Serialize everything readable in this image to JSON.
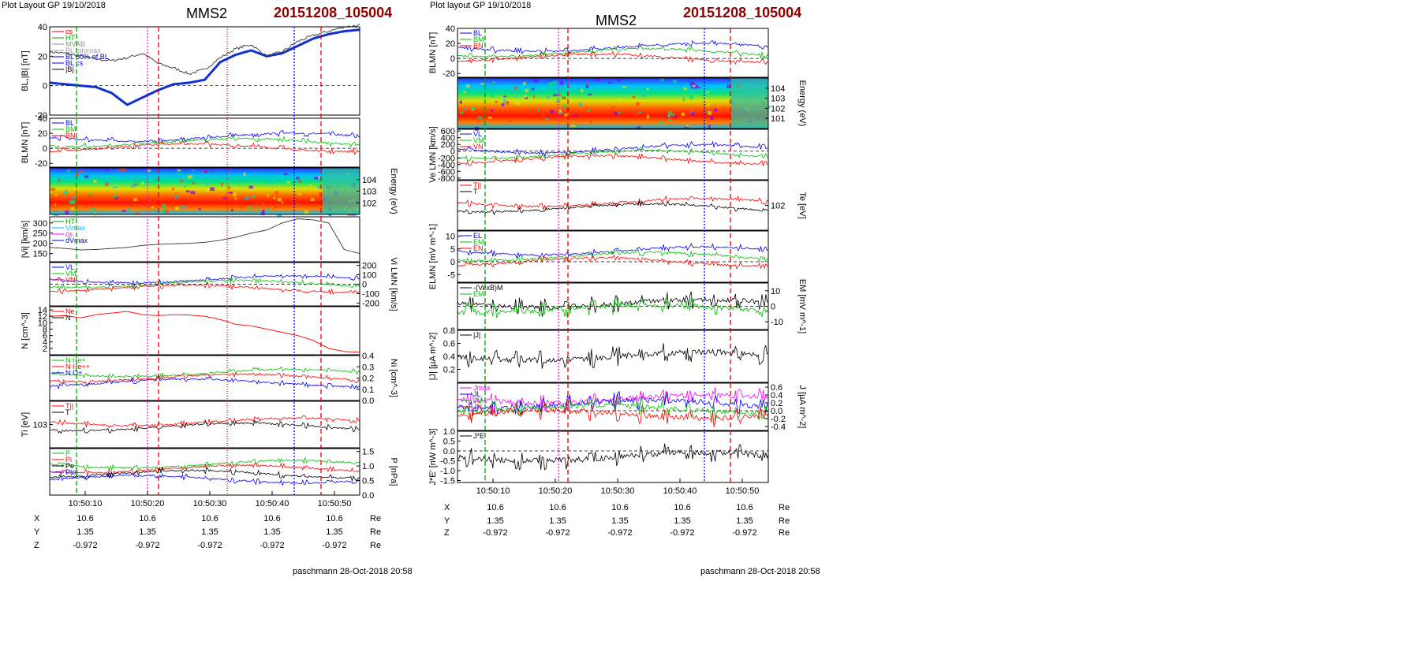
{
  "left": {
    "layout_title": "Plot Layout GP 19/10/2018",
    "spacecraft": "MMS2",
    "event": "20151208_105004",
    "footer": "paschmann 28-Oct-2018 20:58",
    "time_ticks": [
      "10:50:10",
      "10:50:20",
      "10:50:30",
      "10:50:40",
      "10:50:50"
    ],
    "ephemeris": {
      "rows": [
        {
          "label": "X",
          "values": [
            "10.6",
            "10.6",
            "10.6",
            "10.6",
            "10.6"
          ],
          "unit": "Re"
        },
        {
          "label": "Y",
          "values": [
            "1.35",
            "1.35",
            "1.35",
            "1.35",
            "1.35"
          ],
          "unit": "Re"
        },
        {
          "label": "Z",
          "values": [
            "-0.972",
            "-0.972",
            "-0.972",
            "-0.972",
            "-0.972"
          ],
          "unit": "Re"
        }
      ]
    }
  },
  "right": {
    "layout_title": "Plot layout GP 19/10/2018",
    "spacecraft": "MMS2",
    "event": "20151208_105004",
    "footer": "paschmann 28-Oct-2018 20:58",
    "time_ticks": [
      "10:50:10",
      "10:50:20",
      "10:50:30",
      "10:50:40",
      "10:50:50"
    ],
    "ephemeris": {
      "rows": [
        {
          "label": "X",
          "values": [
            "10.6",
            "10.6",
            "10.6",
            "10.6",
            "10.6"
          ],
          "unit": "Re"
        },
        {
          "label": "Y",
          "values": [
            "1.35",
            "1.35",
            "1.35",
            "1.35",
            "1.35"
          ],
          "unit": "Re"
        },
        {
          "label": "Z",
          "values": [
            "-0.972",
            "-0.972",
            "-0.972",
            "-0.972",
            "-0.972"
          ],
          "unit": "Re"
        }
      ]
    }
  },
  "chart_data": [
    {
      "type": "line",
      "ylabel": "BL,|B| [nT]",
      "ylim": [
        -20,
        40
      ],
      "yticks": [
        "40",
        "20",
        "0",
        "-20"
      ],
      "legend": [
        "cs",
        "HT",
        "MVAB",
        "BL minmax",
        "BL 50% of BL",
        "BL cs",
        "|B|"
      ],
      "colors": [
        "#e00000",
        "#00a000",
        "#909090",
        "#a0a0a0",
        "#0000c0",
        "#0000ff",
        "#000000"
      ],
      "series": [
        {
          "name": "BL",
          "values": [
            2,
            1,
            0,
            -1,
            -5,
            -13,
            -8,
            -3,
            1,
            2,
            4,
            16,
            21,
            24,
            20,
            22,
            27,
            32,
            35,
            37,
            38
          ]
        },
        {
          "name": "|B|",
          "values": [
            23,
            22,
            20,
            18,
            17,
            19,
            22,
            15,
            12,
            8,
            11,
            19,
            25,
            28,
            20,
            23,
            30,
            34,
            37,
            40,
            41
          ]
        }
      ]
    },
    {
      "type": "line",
      "ylabel": "BLMN [nT]",
      "ylim": [
        -25,
        40
      ],
      "yticks": [
        "40",
        "20",
        "0",
        "-20"
      ],
      "legend": [
        "BL",
        "BM",
        "BN"
      ],
      "colors": [
        "#0000ff",
        "#00c000",
        "#ff0000"
      ]
    },
    {
      "type": "heatmap",
      "ylabel": "Energy (eV)",
      "yticks": [
        "10^4",
        "10^3",
        "10^2"
      ]
    },
    {
      "type": "line",
      "ylabel": "|Vi| [km/s]",
      "ylim": [
        110,
        330
      ],
      "yticks": [
        "300",
        "250",
        "200",
        "150"
      ],
      "legend": [
        "HT",
        "Vimax",
        "cs",
        "dVmax"
      ],
      "colors": [
        "#00a000",
        "#00c0ff",
        "#ff00ff",
        "#0000c0"
      ],
      "series": [
        {
          "name": "|Vi|",
          "values": [
            180,
            175,
            168,
            170,
            175,
            180,
            190,
            195,
            198,
            200,
            205,
            215,
            230,
            250,
            265,
            300,
            320,
            315,
            300,
            170,
            150
          ]
        }
      ]
    },
    {
      "type": "line",
      "ylabel": "Vi LMN [km/s]",
      "ylim": [
        -230,
        230
      ],
      "yticks": [
        "200",
        "100",
        "0",
        "-100",
        "-200"
      ],
      "legend": [
        "VL",
        "VM",
        "VN"
      ],
      "colors": [
        "#0000ff",
        "#00c000",
        "#ff0000"
      ]
    },
    {
      "type": "line",
      "ylabel": "N [cm^-3]",
      "ylim": [
        0,
        15
      ],
      "yticks": [
        "14",
        "12",
        "10",
        "8",
        "6",
        "4",
        "2"
      ],
      "legend": [
        "Ne",
        "N"
      ],
      "colors": [
        "#ff0000",
        "#000000"
      ],
      "series": [
        {
          "name": "Ne",
          "values": [
            12,
            12.2,
            11.5,
            12.5,
            13,
            13.5,
            12.5,
            12.2,
            12.5,
            12.4,
            12,
            11,
            9.5,
            9,
            8,
            7,
            6,
            4.5,
            2,
            1,
            0.8
          ]
        }
      ]
    },
    {
      "type": "line",
      "ylabel": "Ni [cm^-3]",
      "ylim": [
        0,
        0.4
      ],
      "yticks": [
        "0.4",
        "0.3",
        "0.2",
        "0.1",
        "0.0"
      ],
      "legend": [
        "N He+",
        "N He++",
        "N O+"
      ],
      "colors": [
        "#00c000",
        "#ff0000",
        "#0000ff"
      ]
    },
    {
      "type": "line",
      "ylabel": "Ti [eV]",
      "yticks": [
        "10^3"
      ],
      "legend": [
        "T||",
        "T"
      ],
      "colors": [
        "#ff0000",
        "#000000"
      ]
    },
    {
      "type": "line",
      "ylabel": "P [nPa]",
      "ylim": [
        0,
        1.6
      ],
      "yticks": [
        "1.5",
        "1.0",
        "0.5",
        "0.0"
      ],
      "legend": [
        "P",
        "Pi",
        "Pe",
        "Ptot"
      ],
      "colors": [
        "#00c000",
        "#ff0000",
        "#000000",
        "#0000ff"
      ]
    },
    {
      "type": "line",
      "ylabel": "BLMN [nT]",
      "ylim": [
        -25,
        40
      ],
      "yticks": [
        "40",
        "20",
        "0",
        "-20"
      ],
      "legend": [
        "BL",
        "BM",
        "BN"
      ],
      "colors": [
        "#0000ff",
        "#00c000",
        "#ff0000"
      ]
    },
    {
      "type": "heatmap",
      "ylabel": "Energy (eV)",
      "yticks": [
        "10^4",
        "10^3",
        "10^2",
        "10^1"
      ]
    },
    {
      "type": "line",
      "ylabel": "Ve LMN [km/s]",
      "ylim": [
        -850,
        650
      ],
      "yticks": [
        "600",
        "400",
        "200",
        "0",
        "-200",
        "-400",
        "-600",
        "-800"
      ],
      "legend": [
        "VL",
        "VM",
        "VN"
      ],
      "colors": [
        "#0000ff",
        "#00c000",
        "#ff0000"
      ]
    },
    {
      "type": "line",
      "ylabel": "Te [eV]",
      "yticks": [
        "10^2"
      ],
      "legend": [
        "T||",
        "T"
      ],
      "colors": [
        "#ff0000",
        "#000000"
      ]
    },
    {
      "type": "line",
      "ylabel": "ELMN [mV m^-1]",
      "ylim": [
        -8,
        12
      ],
      "yticks": [
        "10",
        "5",
        "0",
        "-5"
      ],
      "legend": [
        "EL",
        "EM",
        "EN"
      ],
      "colors": [
        "#0000ff",
        "#00c000",
        "#ff0000"
      ]
    },
    {
      "type": "line",
      "ylabel": "EM [mV m^-1]",
      "ylim": [
        -15,
        15
      ],
      "yticks": [
        "10",
        "0",
        "-10"
      ],
      "legend": [
        "-(VexB)M",
        "EM"
      ],
      "colors": [
        "#000000",
        "#00c000"
      ]
    },
    {
      "type": "line",
      "ylabel": "|J| [µA m^-2]",
      "ylim": [
        0,
        0.8
      ],
      "yticks": [
        "0.8",
        "0.6",
        "0.4",
        "0.2"
      ],
      "legend": [
        "|J|"
      ],
      "colors": [
        "#000000"
      ]
    },
    {
      "type": "line",
      "ylabel": "J [µA m^-2]",
      "ylim": [
        -0.5,
        0.7
      ],
      "yticks": [
        "0.6",
        "0.4",
        "0.2",
        "0.0",
        "-0.2",
        "-0.4"
      ],
      "legend": [
        "Jmax",
        "JL",
        "JM",
        "JN"
      ],
      "colors": [
        "#ff00ff",
        "#0000ff",
        "#00c000",
        "#ff0000"
      ]
    },
    {
      "type": "line",
      "ylabel": "J*E' [nW m^-3]",
      "ylim": [
        -1.6,
        1.0
      ],
      "yticks": [
        "1.0",
        "0.5",
        "0.0",
        "-0.5",
        "-1.0",
        "-1.5"
      ],
      "legend": [
        "J*E'"
      ],
      "colors": [
        "#000000"
      ]
    }
  ]
}
